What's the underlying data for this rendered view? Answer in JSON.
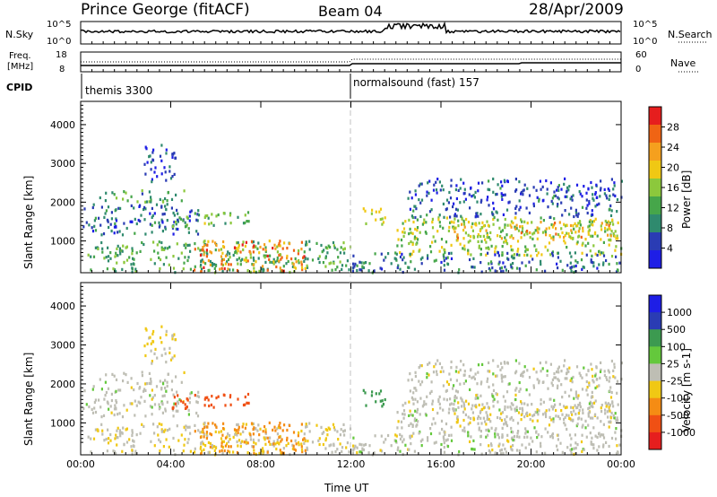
{
  "header": {
    "station": "Prince George (fitACF)",
    "beam": "Beam 04",
    "date": "28/Apr/2009"
  },
  "top_panel": {
    "left_label_1": "N.Sky",
    "left_label_2": "Freq.",
    "left_label_3": "[MHz]",
    "left_label_4": "CPID",
    "right_label_1": "N.Search",
    "right_label_2": "Nave",
    "noise_ticks_left": [
      "10^5",
      "10^0"
    ],
    "noise_ticks_right": [
      "10^5",
      "10^0"
    ],
    "freq_ticks": [
      "18",
      "8"
    ],
    "nave_ticks": [
      "60",
      "0"
    ],
    "cpid_1": "themis 3300",
    "cpid_2": "normalsound (fast) 157"
  },
  "axes": {
    "ylabel": "Slant Range [km]",
    "xlabel": "Time UT",
    "y_ticks": [
      "1000",
      "2000",
      "3000",
      "4000"
    ],
    "x_ticks": [
      "00:00",
      "04:00",
      "08:00",
      "12:00",
      "16:00",
      "20:00",
      "00:00"
    ]
  },
  "power_bar": {
    "label": "Power [dB]",
    "ticks": [
      "4",
      "8",
      "12",
      "16",
      "20",
      "24",
      "28"
    ]
  },
  "velocity_bar": {
    "label": "Velocity [m s-1]",
    "ticks": [
      "1000",
      "500",
      "100",
      "25",
      "-25",
      "-100",
      "-500",
      "-1000"
    ]
  },
  "chart_data": {
    "type": "heatmap",
    "title": "Prince George (fitACF) Beam 04 28/Apr/2009",
    "xlabel": "Time UT",
    "ylabel": "Slant Range [km]",
    "x_range_hours": [
      0,
      24
    ],
    "y_range_km": [
      180,
      4600
    ],
    "cpid_switch_hour": 12,
    "power_colors": [
      "#1e1ee6",
      "#2a3cb4",
      "#2f8a6e",
      "#46a64a",
      "#8cc83c",
      "#f0c814",
      "#f5a01e",
      "#f06414",
      "#e61e1e"
    ],
    "velocity_colors": [
      "#1e1ee6",
      "#2a3cb4",
      "#3c9a50",
      "#64c83c",
      "#bebeb4",
      "#f0c814",
      "#f58c14",
      "#f05014",
      "#e61e1e"
    ],
    "echo_regions": [
      {
        "t0": 0.0,
        "t1": 5.3,
        "r0": 1150,
        "r1": 1950,
        "power": 9,
        "velocity": 0
      },
      {
        "t0": 0.8,
        "t1": 4.6,
        "r0": 2000,
        "r1": 2300,
        "power": 13,
        "velocity": 0
      },
      {
        "t0": 2.8,
        "t1": 4.2,
        "r0": 2500,
        "r1": 3500,
        "power": 6,
        "velocity": -30
      },
      {
        "t0": 4.0,
        "t1": 7.5,
        "r0": 1350,
        "r1": 1750,
        "power": 15,
        "velocity": -600
      },
      {
        "t0": 0.2,
        "t1": 12.0,
        "r0": 180,
        "r1": 1000,
        "power": 14,
        "velocity": -20
      },
      {
        "t0": 5.0,
        "t1": 10.0,
        "r0": 200,
        "r1": 1000,
        "power": 26,
        "velocity": -80
      },
      {
        "t0": 12.5,
        "t1": 13.5,
        "r0": 1400,
        "r1": 1900,
        "power": 18,
        "velocity": 150
      },
      {
        "t0": 14.0,
        "t1": 24.0,
        "r0": 600,
        "r1": 1600,
        "power": 18,
        "velocity": 0
      },
      {
        "t0": 16.5,
        "t1": 24.0,
        "r0": 1000,
        "r1": 1500,
        "power": 22,
        "velocity": -20
      },
      {
        "t0": 14.5,
        "t1": 24.0,
        "r0": 1600,
        "r1": 2600,
        "power": 8,
        "velocity": 0
      },
      {
        "t0": 12.0,
        "t1": 24.0,
        "r0": 180,
        "r1": 700,
        "power": 10,
        "velocity": 0
      }
    ]
  }
}
